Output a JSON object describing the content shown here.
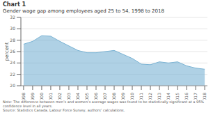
{
  "chart_data": {
    "type": "area",
    "title": "Chart 1",
    "subtitle": "Gender wage gap among employees aged 25 to 54, 1998 to 2018",
    "y_label": "percent",
    "annotations": [
      "Note: The difference between men’s and women’s average wages was found to be statistically significant at a 95% confidence level in all years.",
      "Source: Statistics Canada, Labour Force Survey, authors’ calculations."
    ],
    "x": [
      1998,
      1999,
      2000,
      2001,
      2002,
      2003,
      2004,
      2005,
      2006,
      2007,
      2008,
      2009,
      2010,
      2011,
      2012,
      2013,
      2014,
      2015,
      2016,
      2017,
      2018
    ],
    "values": [
      27.3,
      27.8,
      28.8,
      28.7,
      27.8,
      27.0,
      26.2,
      25.8,
      25.8,
      26.0,
      26.2,
      25.5,
      24.8,
      23.8,
      23.7,
      24.2,
      24.0,
      24.2,
      23.5,
      23.1,
      22.9
    ],
    "color": "#7ab3d4",
    "xlim": [
      1997.7,
      2018.3
    ],
    "xticks": [
      1998,
      1999,
      2000,
      2001,
      2002,
      2003,
      2004,
      2005,
      2006,
      2007,
      2008,
      2009,
      2010,
      2011,
      2012,
      2013,
      2014,
      2015,
      2016,
      2017,
      2018
    ],
    "ylim": [
      20,
      32
    ],
    "yticks": [
      20,
      22,
      24,
      26,
      28,
      30,
      32
    ],
    "grid": true
  }
}
